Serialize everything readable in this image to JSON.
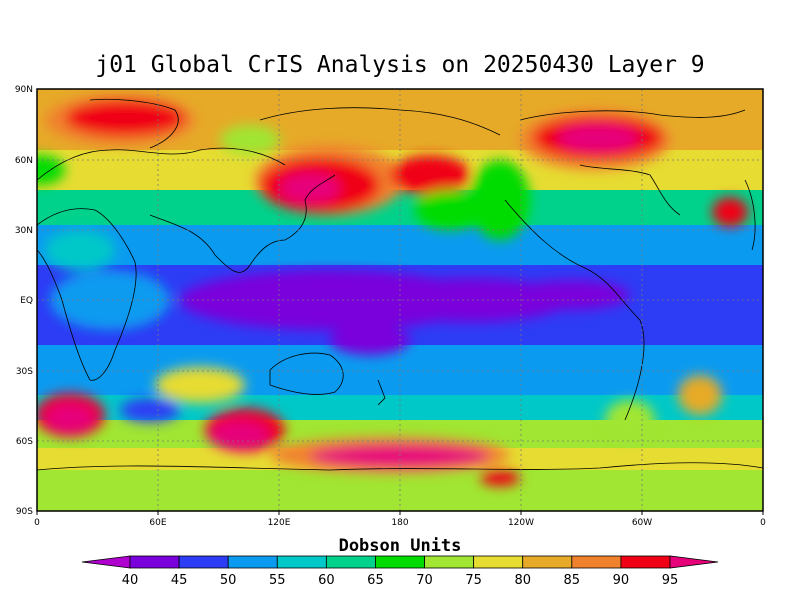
{
  "title": "j01 Global CrIS Analysis on 20250430 Layer 9",
  "colorbar": {
    "title": "Dobson Units",
    "labels": [
      "40",
      "45",
      "50",
      "55",
      "60",
      "65",
      "70",
      "75",
      "80",
      "85",
      "90",
      "95"
    ],
    "colors": [
      "#b000d0",
      "#7a00dc",
      "#2d3cf5",
      "#0a9bf0",
      "#00c8c8",
      "#00d28c",
      "#00dc00",
      "#a0e632",
      "#e6dc32",
      "#e6aa28",
      "#f0822d",
      "#f00014",
      "#e6007a"
    ]
  },
  "axes": {
    "lat_labels": [
      "90N",
      "60N",
      "30N",
      "EQ",
      "30S",
      "60S",
      "90S"
    ],
    "lon_labels": [
      "0",
      "60E",
      "120E",
      "180",
      "120W",
      "60W",
      "0"
    ]
  }
}
